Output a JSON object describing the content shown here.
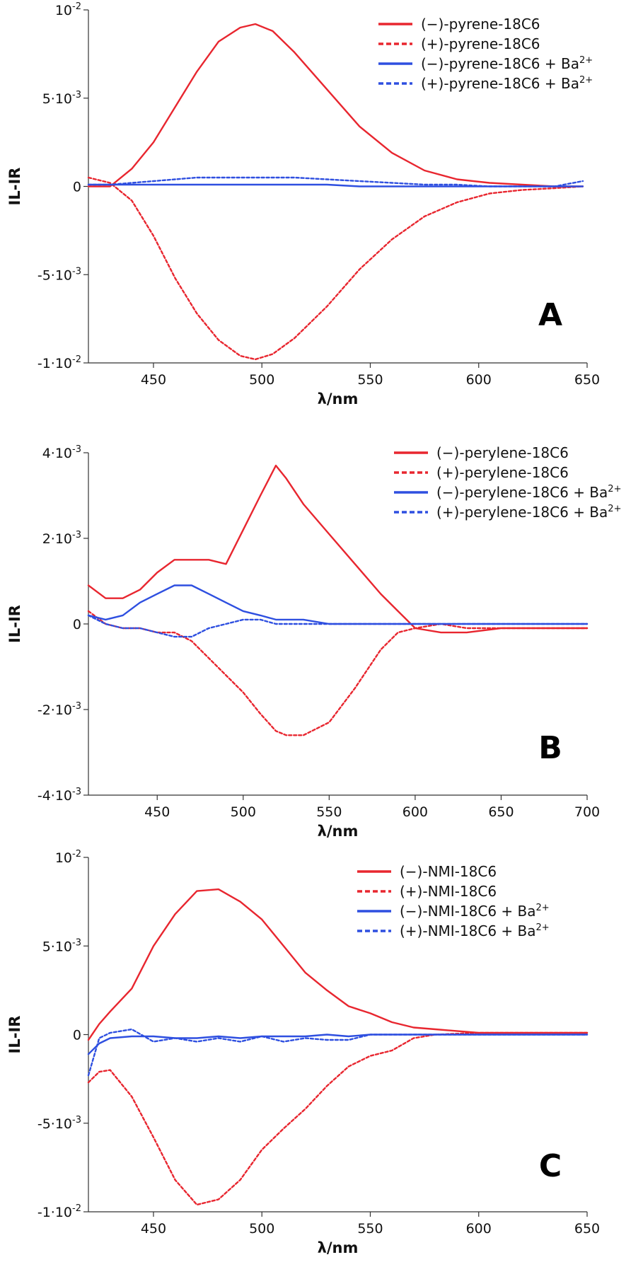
{
  "chart_data": [
    {
      "type": "line",
      "panel_label": "A",
      "xlabel": "λ/nm",
      "ylabel": "IL-IR",
      "xlim": [
        420,
        650
      ],
      "ylim": [
        -0.01,
        0.01
      ],
      "x_ticks": [
        450,
        500,
        550,
        600,
        650
      ],
      "y_ticks": [
        {
          "value": 0.01,
          "mant": "10",
          "exp": "-2"
        },
        {
          "value": 0.005,
          "mant": "5·10",
          "exp": "-3"
        },
        {
          "value": 0,
          "mant": "0",
          "exp": ""
        },
        {
          "value": -0.005,
          "mant": "-5·10",
          "exp": "-3"
        },
        {
          "value": -0.01,
          "mant": "-1·10",
          "exp": "-2"
        }
      ],
      "legend": [
        "(−)-pyrene-18C6",
        "(+)-pyrene-18C6",
        "(−)-pyrene-18C6 + Ba2+",
        "(+)-pyrene-18C6 + Ba2+"
      ],
      "x": [
        420,
        430,
        440,
        450,
        460,
        470,
        480,
        490,
        497,
        505,
        515,
        530,
        545,
        560,
        575,
        590,
        605,
        620,
        635,
        648
      ],
      "series": [
        {
          "name": "(−)-pyrene-18C6",
          "color": "#e8262f",
          "dash": false,
          "values": [
            0.0,
            0.0,
            0.001,
            0.0025,
            0.0045,
            0.0065,
            0.0082,
            0.009,
            0.0092,
            0.0088,
            0.0076,
            0.0055,
            0.0034,
            0.0019,
            0.0009,
            0.0004,
            0.0002,
            0.0001,
            0.0,
            0.0
          ]
        },
        {
          "name": "(+)-pyrene-18C6",
          "color": "#e8262f",
          "dash": true,
          "values": [
            0.0005,
            0.0002,
            -0.0008,
            -0.0028,
            -0.0052,
            -0.0072,
            -0.0087,
            -0.0096,
            -0.0098,
            -0.0095,
            -0.0086,
            -0.0068,
            -0.0047,
            -0.003,
            -0.0017,
            -0.0009,
            -0.0004,
            -0.0002,
            -0.0001,
            0.0
          ]
        },
        {
          "name": "(−)-pyrene-18C6 + Ba2+",
          "color": "#2e4fe0",
          "dash": false,
          "values": [
            0.0001,
            0.0001,
            0.0001,
            0.0001,
            0.0001,
            0.0001,
            0.0001,
            0.0001,
            0.0001,
            0.0001,
            0.0001,
            0.0001,
            0.0,
            0.0,
            0.0,
            0.0,
            0.0,
            0.0,
            0.0,
            0.0
          ]
        },
        {
          "name": "(+)-pyrene-18C6 + Ba2+",
          "color": "#2e4fe0",
          "dash": true,
          "values": [
            0.0001,
            0.0001,
            0.0002,
            0.0003,
            0.0004,
            0.0005,
            0.0005,
            0.0005,
            0.0005,
            0.0005,
            0.0005,
            0.0004,
            0.0003,
            0.0002,
            0.0001,
            0.0001,
            0.0,
            0.0,
            0.0,
            0.0003
          ]
        }
      ]
    },
    {
      "type": "line",
      "panel_label": "B",
      "xlabel": "λ/nm",
      "ylabel": "IL-IR",
      "xlim": [
        410,
        700
      ],
      "ylim": [
        -0.004,
        0.004
      ],
      "x_ticks": [
        450,
        500,
        550,
        600,
        650,
        700
      ],
      "y_ticks": [
        {
          "value": 0.004,
          "mant": "4·10",
          "exp": "-3"
        },
        {
          "value": 0.002,
          "mant": "2·10",
          "exp": "-3"
        },
        {
          "value": 0,
          "mant": "0",
          "exp": ""
        },
        {
          "value": -0.002,
          "mant": "-2·10",
          "exp": "-3"
        },
        {
          "value": -0.004,
          "mant": "-4·10",
          "exp": "-3"
        }
      ],
      "legend": [
        "(−)-perylene-18C6",
        "(+)-perylene-18C6",
        "(−)-perylene-18C6 + Ba2+",
        "(+)-perylene-18C6 + Ba2+"
      ],
      "x": [
        410,
        420,
        430,
        440,
        450,
        460,
        470,
        480,
        490,
        500,
        510,
        519,
        525,
        535,
        550,
        565,
        580,
        590,
        600,
        615,
        630,
        650,
        670,
        700
      ],
      "series": [
        {
          "name": "(−)-perylene-18C6",
          "color": "#e8262f",
          "dash": false,
          "values": [
            0.0009,
            0.0006,
            0.0006,
            0.0008,
            0.0012,
            0.0015,
            0.0015,
            0.0015,
            0.0014,
            0.0022,
            0.003,
            0.0037,
            0.0034,
            0.0028,
            0.0021,
            0.0014,
            0.0007,
            0.0003,
            -0.0001,
            -0.0002,
            -0.0002,
            -0.0001,
            -0.0001,
            -0.0001
          ]
        },
        {
          "name": "(+)-perylene-18C6",
          "color": "#e8262f",
          "dash": true,
          "values": [
            0.0003,
            0.0,
            -0.0001,
            -0.0001,
            -0.0002,
            -0.0002,
            -0.0004,
            -0.0008,
            -0.0012,
            -0.0016,
            -0.0021,
            -0.0025,
            -0.0026,
            -0.0026,
            -0.0023,
            -0.0015,
            -0.0006,
            -0.0002,
            -0.0001,
            0.0,
            -0.0001,
            -0.0001,
            -0.0001,
            -0.0001
          ]
        },
        {
          "name": "(−)-perylene-18C6 + Ba2+",
          "color": "#2e4fe0",
          "dash": false,
          "values": [
            0.0002,
            0.0001,
            0.0002,
            0.0005,
            0.0007,
            0.0009,
            0.0009,
            0.0007,
            0.0005,
            0.0003,
            0.0002,
            0.0001,
            0.0001,
            0.0001,
            0.0,
            0.0,
            0.0,
            0.0,
            0.0,
            0.0,
            0.0,
            0.0,
            0.0,
            0.0
          ]
        },
        {
          "name": "(+)-perylene-18C6 + Ba2+",
          "color": "#2e4fe0",
          "dash": true,
          "values": [
            0.0002,
            0.0,
            -0.0001,
            -0.0001,
            -0.0002,
            -0.0003,
            -0.0003,
            -0.0001,
            0.0,
            0.0001,
            0.0001,
            0.0,
            0.0,
            0.0,
            0.0,
            0.0,
            0.0,
            0.0,
            0.0,
            0.0,
            0.0,
            0.0,
            0.0,
            0.0
          ]
        }
      ]
    },
    {
      "type": "line",
      "panel_label": "C",
      "xlabel": "λ/nm",
      "ylabel": "IL-IR",
      "xlim": [
        420,
        650
      ],
      "ylim": [
        -0.01,
        0.01
      ],
      "x_ticks": [
        450,
        500,
        550,
        600,
        650
      ],
      "y_ticks": [
        {
          "value": 0.01,
          "mant": "10",
          "exp": "-2"
        },
        {
          "value": 0.005,
          "mant": "5·10",
          "exp": "-3"
        },
        {
          "value": 0,
          "mant": "0",
          "exp": ""
        },
        {
          "value": -0.005,
          "mant": "-5·10",
          "exp": "-3"
        },
        {
          "value": -0.01,
          "mant": "-1·10",
          "exp": "-2"
        }
      ],
      "legend": [
        "(−)-NMI-18C6",
        "(+)-NMI-18C6",
        "(−)-NMI-18C6 + Ba2+",
        "(+)-NMI-18C6 + Ba2+"
      ],
      "x": [
        420,
        425,
        430,
        440,
        450,
        460,
        470,
        480,
        490,
        500,
        510,
        520,
        530,
        540,
        550,
        560,
        570,
        580,
        600,
        620,
        650
      ],
      "series": [
        {
          "name": "(−)-NMI-18C6",
          "color": "#e8262f",
          "dash": false,
          "values": [
            -0.0003,
            0.0006,
            0.0013,
            0.0026,
            0.005,
            0.0068,
            0.0081,
            0.0082,
            0.0075,
            0.0065,
            0.005,
            0.0035,
            0.0025,
            0.0016,
            0.0012,
            0.0007,
            0.0004,
            0.0003,
            0.0001,
            0.0001,
            0.0001
          ]
        },
        {
          "name": "(+)-NMI-18C6",
          "color": "#e8262f",
          "dash": true,
          "values": [
            -0.0027,
            -0.0021,
            -0.002,
            -0.0035,
            -0.0058,
            -0.0082,
            -0.0096,
            -0.0093,
            -0.0082,
            -0.0065,
            -0.0053,
            -0.0042,
            -0.0029,
            -0.0018,
            -0.0012,
            -0.0009,
            -0.0002,
            0.0,
            0.0001,
            0.0001,
            0.0001
          ]
        },
        {
          "name": "(−)-NMI-18C6 + Ba2+",
          "color": "#2e4fe0",
          "dash": false,
          "values": [
            -0.0011,
            -0.0005,
            -0.0002,
            -0.0001,
            -0.0001,
            -0.0002,
            -0.0002,
            -0.0001,
            -0.0002,
            -0.0001,
            -0.0001,
            -0.0001,
            0.0,
            -0.0001,
            0.0,
            0.0,
            0.0,
            0.0,
            0.0,
            0.0,
            0.0
          ]
        },
        {
          "name": "(+)-NMI-18C6 + Ba2+",
          "color": "#2e4fe0",
          "dash": true,
          "values": [
            -0.0023,
            -0.0002,
            0.0001,
            0.0003,
            -0.0004,
            -0.0002,
            -0.0004,
            -0.0002,
            -0.0004,
            -0.0001,
            -0.0004,
            -0.0002,
            -0.0003,
            -0.0003,
            0.0,
            0.0,
            0.0,
            0.0,
            0.0,
            0.0,
            0.0
          ]
        }
      ]
    }
  ]
}
